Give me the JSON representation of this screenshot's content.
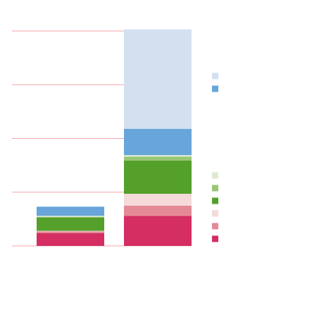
{
  "chart_data": {
    "type": "bar",
    "stacked": true,
    "categories": [
      "",
      ""
    ],
    "ylim": [
      0,
      4
    ],
    "gridlines": [
      0,
      1,
      2,
      3,
      4
    ],
    "grid_color": "#f4a3aa",
    "legend_position": "right",
    "series": [
      {
        "color": "#d42e62",
        "values": [
          0.24,
          0.56
        ]
      },
      {
        "color": "#e48a97",
        "values": [
          0.03,
          0.19
        ]
      },
      {
        "color": "#f5dada",
        "values": [
          0.01,
          0.22
        ]
      },
      {
        "color": "#55a02a",
        "values": [
          0.25,
          0.62
        ]
      },
      {
        "color": "#9ac676",
        "values": [
          0.01,
          0.07
        ]
      },
      {
        "color": "#deeacf",
        "values": [
          0.02,
          0.03
        ]
      },
      {
        "color": "#67a5da",
        "values": [
          0.17,
          0.49
        ]
      },
      {
        "color": "#d3e0f0",
        "values": [
          0.0,
          1.85
        ]
      }
    ],
    "legend_groups": [
      [
        7,
        6
      ],
      [
        5,
        4,
        3,
        2,
        1,
        0
      ]
    ]
  }
}
